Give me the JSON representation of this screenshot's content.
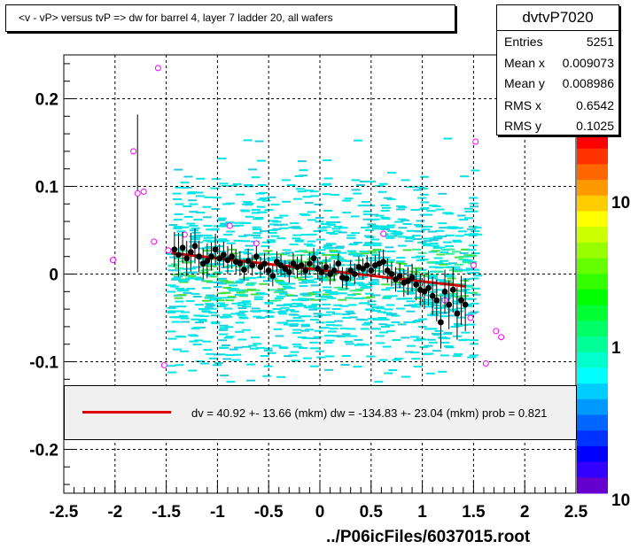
{
  "chart_data": {
    "type": "scatter",
    "title": "<v - vP>       versus  tvP =>  dw for barrel 4, layer 7 ladder 20, all wafers",
    "xlabel": "",
    "ylabel": "",
    "xlim": [
      -2.5,
      2.5
    ],
    "ylim": [
      -0.25,
      0.25
    ],
    "x_ticks": [
      "-2.5",
      "-2",
      "-1.5",
      "-1",
      "-0.5",
      "0",
      "0.5",
      "1",
      "1.5",
      "2",
      "2.5"
    ],
    "y_ticks": [
      "0.2",
      "0.1",
      "0",
      "-0.1",
      "-0.2"
    ],
    "grid": true,
    "color_scale": {
      "labels": [
        "10",
        "1",
        "10"
      ],
      "type": "log"
    },
    "stats": {
      "name": "dvtvP7020",
      "rows": [
        {
          "key": "Entries",
          "value": "5251"
        },
        {
          "key": "Mean x",
          "value": "0.009073"
        },
        {
          "key": "Mean y",
          "value": "0.008986"
        },
        {
          "key": "RMS x",
          "value": "0.6542"
        },
        {
          "key": "RMS y",
          "value": "0.1025"
        }
      ]
    },
    "fit": {
      "legend": "dv =   40.92 +- 13.66 (mkm) dw = -134.83 +- 23.04 (mkm) prob = 0.821",
      "x": [
        -1.45,
        1.42
      ],
      "y": [
        0.024,
        -0.014
      ],
      "color": "#e00000"
    },
    "profile_black": {
      "x": [
        -1.42,
        -1.38,
        -1.34,
        -1.3,
        -1.26,
        -1.22,
        -1.18,
        -1.14,
        -1.1,
        -1.06,
        -1.02,
        -0.98,
        -0.94,
        -0.9,
        -0.86,
        -0.82,
        -0.78,
        -0.74,
        -0.7,
        -0.66,
        -0.62,
        -0.58,
        -0.54,
        -0.5,
        -0.46,
        -0.42,
        -0.38,
        -0.34,
        -0.3,
        -0.26,
        -0.22,
        -0.18,
        -0.14,
        -0.1,
        -0.06,
        -0.02,
        0.02,
        0.06,
        0.1,
        0.14,
        0.18,
        0.22,
        0.26,
        0.3,
        0.34,
        0.38,
        0.42,
        0.46,
        0.5,
        0.54,
        0.58,
        0.62,
        0.66,
        0.7,
        0.74,
        0.78,
        0.82,
        0.86,
        0.9,
        0.94,
        0.98,
        1.02,
        1.06,
        1.1,
        1.14,
        1.18,
        1.22,
        1.26,
        1.3,
        1.34,
        1.38,
        1.42
      ],
      "y": [
        0.028,
        0.022,
        0.03,
        0.018,
        0.025,
        0.032,
        0.02,
        0.012,
        0.015,
        0.02,
        0.028,
        0.018,
        0.022,
        0.016,
        0.02,
        0.014,
        0.012,
        0.005,
        0.015,
        0.01,
        0.02,
        0.008,
        0.012,
        0.004,
        -0.002,
        0.014,
        0.01,
        0.006,
        0.002,
        0.012,
        0.008,
        0.01,
        0.004,
        0.012,
        0.018,
        0.006,
        0.002,
        0.008,
        0.0,
        0.004,
        0.012,
        -0.004,
        -0.005,
        0.004,
        0.0,
        0.008,
        0.006,
        0.01,
        0.004,
        0.01,
        0.012,
        0.014,
        0.004,
        0.0,
        -0.006,
        -0.002,
        -0.01,
        -0.008,
        -0.004,
        -0.012,
        -0.018,
        -0.02,
        -0.016,
        -0.025,
        -0.03,
        -0.055,
        -0.02,
        -0.035,
        -0.018,
        -0.045,
        -0.03,
        -0.035
      ],
      "err": [
        0.02,
        0.025,
        0.018,
        0.02,
        0.022,
        0.02,
        0.018,
        0.018,
        0.02,
        0.016,
        0.018,
        0.016,
        0.015,
        0.016,
        0.014,
        0.014,
        0.014,
        0.012,
        0.014,
        0.012,
        0.012,
        0.012,
        0.012,
        0.012,
        0.012,
        0.012,
        0.012,
        0.01,
        0.012,
        0.012,
        0.012,
        0.012,
        0.01,
        0.012,
        0.012,
        0.012,
        0.012,
        0.012,
        0.012,
        0.012,
        0.012,
        0.012,
        0.012,
        0.012,
        0.012,
        0.012,
        0.012,
        0.012,
        0.012,
        0.012,
        0.014,
        0.014,
        0.014,
        0.014,
        0.014,
        0.014,
        0.016,
        0.016,
        0.016,
        0.018,
        0.018,
        0.02,
        0.02,
        0.022,
        0.024,
        0.03,
        0.025,
        0.028,
        0.026,
        0.03,
        0.028,
        0.03
      ]
    },
    "profile_open": {
      "x": [
        -2.02,
        -1.82,
        -1.78,
        -1.72,
        -1.62,
        -1.58,
        -1.52,
        -1.48,
        -1.32,
        -0.88,
        -0.62,
        0.62,
        1.22,
        1.47,
        1.5,
        1.52,
        1.62,
        1.72,
        1.77
      ],
      "y": [
        0.016,
        0.14,
        0.092,
        0.094,
        0.037,
        0.235,
        -0.104,
        0.027,
        0.045,
        0.055,
        0.035,
        0.046,
        -0.03,
        -0.05,
        0.01,
        0.151,
        -0.102,
        -0.065,
        -0.072
      ],
      "err": [
        0,
        0,
        0.09,
        0,
        0,
        0,
        0,
        0,
        0,
        0,
        0,
        0,
        0,
        0,
        0,
        0,
        0,
        0,
        0
      ]
    }
  },
  "footer": "../P06icFiles/6037015.root"
}
